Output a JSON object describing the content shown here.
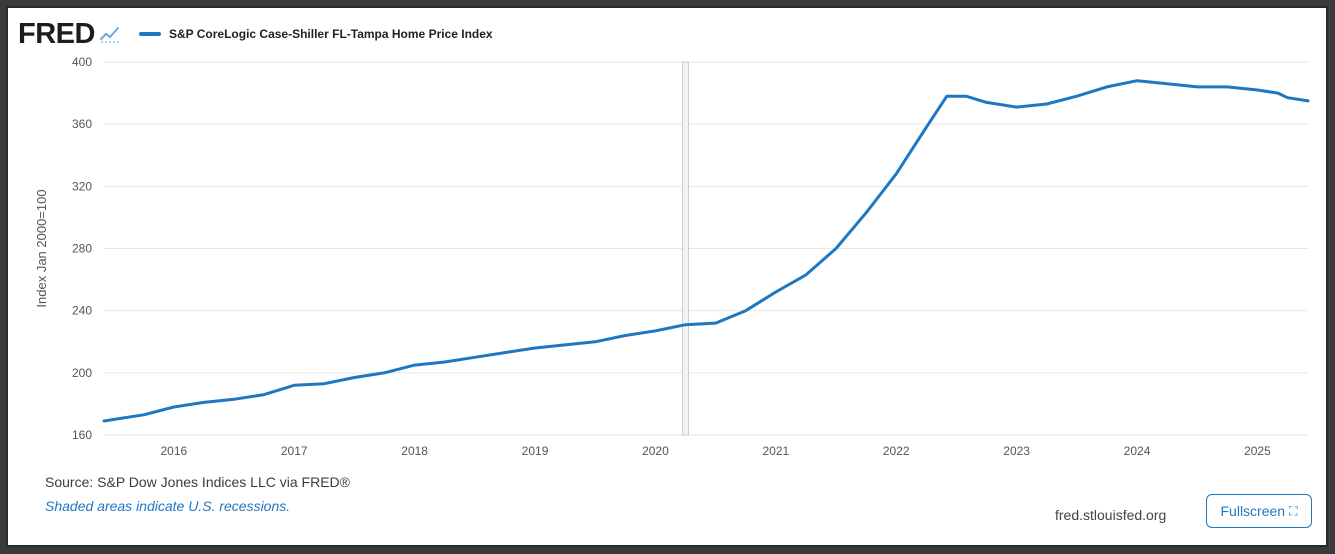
{
  "header": {
    "logo_text": "FRED",
    "logo_icon": "line-chart-icon",
    "legend_label": "S&P CoreLogic Case-Shiller FL-Tampa Home Price Index"
  },
  "footer": {
    "source": "Source: S&P Dow Jones Indices LLC via FRED®",
    "recessions_note": "Shaded areas indicate U.S. recessions.",
    "site": "fred.stlouisfed.org",
    "fullscreen_label": "Fullscreen",
    "fullscreen_icon": "expand-icon"
  },
  "colors": {
    "series": "#1f77c1",
    "grid": "#e6e6e6",
    "recession_line": "#b8c6cf",
    "axis_text": "#555555"
  },
  "chart_data": {
    "type": "line",
    "title": "",
    "xlabel": "",
    "ylabel": "Index Jan 2000=100",
    "ylim": [
      160,
      400
    ],
    "xlim": [
      2015.42,
      2025.42
    ],
    "y_ticks": [
      "160",
      "200",
      "240",
      "280",
      "320",
      "360",
      "400"
    ],
    "x_ticks": [
      "2016",
      "2017",
      "2018",
      "2019",
      "2020",
      "2021",
      "2022",
      "2023",
      "2024",
      "2025"
    ],
    "grid": true,
    "recession_marker_x": 2020.25,
    "series": [
      {
        "name": "S&P CoreLogic Case-Shiller FL-Tampa Home Price Index",
        "x": [
          2015.42,
          2015.75,
          2016.0,
          2016.25,
          2016.5,
          2016.75,
          2017.0,
          2017.25,
          2017.5,
          2017.75,
          2018.0,
          2018.25,
          2018.5,
          2018.75,
          2019.0,
          2019.25,
          2019.5,
          2019.75,
          2020.0,
          2020.25,
          2020.5,
          2020.75,
          2021.0,
          2021.25,
          2021.5,
          2021.75,
          2022.0,
          2022.25,
          2022.42,
          2022.58,
          2022.75,
          2023.0,
          2023.25,
          2023.5,
          2023.75,
          2024.0,
          2024.25,
          2024.5,
          2024.75,
          2025.0,
          2025.17,
          2025.25,
          2025.42
        ],
        "values": [
          169,
          173,
          178,
          181,
          183,
          186,
          192,
          193,
          197,
          200,
          205,
          207,
          210,
          213,
          216,
          218,
          220,
          224,
          227,
          231,
          232,
          240,
          252,
          263,
          280,
          303,
          328,
          358,
          378,
          378,
          374,
          371,
          373,
          378,
          384,
          388,
          386,
          384,
          384,
          382,
          380,
          377,
          375
        ]
      }
    ]
  }
}
